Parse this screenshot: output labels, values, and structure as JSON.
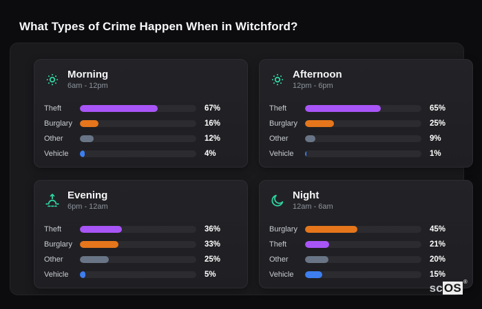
{
  "page": {
    "title": "What Types of Crime Happen When in Witchford?"
  },
  "brand": {
    "prefix": "sc",
    "suffix": "OS",
    "registered": "®"
  },
  "colors": {
    "theft": "#a855f7",
    "burglary": "#e5761b",
    "other": "#697586",
    "vehicle": "#3d7ef0",
    "icon_accent": "#2fd3a0",
    "track": "#2b2b30",
    "card_bg": "#212125",
    "board_bg": "#1a1a1d",
    "page_bg": "#0c0c0e"
  },
  "panels": [
    {
      "title": "Morning",
      "subtitle": "6am - 12pm",
      "icon": "sun",
      "rows": [
        {
          "label": "Theft",
          "value": 67,
          "pct_label": "67%",
          "color_key": "theft"
        },
        {
          "label": "Burglary",
          "value": 16,
          "pct_label": "16%",
          "color_key": "burglary"
        },
        {
          "label": "Other",
          "value": 12,
          "pct_label": "12%",
          "color_key": "other"
        },
        {
          "label": "Vehicle",
          "value": 4,
          "pct_label": "4%",
          "color_key": "vehicle"
        }
      ]
    },
    {
      "title": "Afternoon",
      "subtitle": "12pm - 6pm",
      "icon": "sun",
      "rows": [
        {
          "label": "Theft",
          "value": 65,
          "pct_label": "65%",
          "color_key": "theft"
        },
        {
          "label": "Burglary",
          "value": 25,
          "pct_label": "25%",
          "color_key": "burglary"
        },
        {
          "label": "Other",
          "value": 9,
          "pct_label": "9%",
          "color_key": "other"
        },
        {
          "label": "Vehicle",
          "value": 1,
          "pct_label": "1%",
          "color_key": "vehicle"
        }
      ]
    },
    {
      "title": "Evening",
      "subtitle": "6pm - 12am",
      "icon": "sunset",
      "rows": [
        {
          "label": "Theft",
          "value": 36,
          "pct_label": "36%",
          "color_key": "theft"
        },
        {
          "label": "Burglary",
          "value": 33,
          "pct_label": "33%",
          "color_key": "burglary"
        },
        {
          "label": "Other",
          "value": 25,
          "pct_label": "25%",
          "color_key": "other"
        },
        {
          "label": "Vehicle",
          "value": 5,
          "pct_label": "5%",
          "color_key": "vehicle"
        }
      ]
    },
    {
      "title": "Night",
      "subtitle": "12am - 6am",
      "icon": "moon",
      "rows": [
        {
          "label": "Burglary",
          "value": 45,
          "pct_label": "45%",
          "color_key": "burglary"
        },
        {
          "label": "Theft",
          "value": 21,
          "pct_label": "21%",
          "color_key": "theft"
        },
        {
          "label": "Other",
          "value": 20,
          "pct_label": "20%",
          "color_key": "other"
        },
        {
          "label": "Vehicle",
          "value": 15,
          "pct_label": "15%",
          "color_key": "vehicle"
        }
      ]
    }
  ],
  "chart_data": [
    {
      "type": "bar",
      "orientation": "horizontal",
      "title": "Morning",
      "subtitle": "6am - 12pm",
      "categories": [
        "Theft",
        "Burglary",
        "Other",
        "Vehicle"
      ],
      "values": [
        67,
        16,
        12,
        4
      ],
      "unit": "%",
      "xlim": [
        0,
        100
      ],
      "grid": false,
      "legend": false
    },
    {
      "type": "bar",
      "orientation": "horizontal",
      "title": "Afternoon",
      "subtitle": "12pm - 6pm",
      "categories": [
        "Theft",
        "Burglary",
        "Other",
        "Vehicle"
      ],
      "values": [
        65,
        25,
        9,
        1
      ],
      "unit": "%",
      "xlim": [
        0,
        100
      ],
      "grid": false,
      "legend": false
    },
    {
      "type": "bar",
      "orientation": "horizontal",
      "title": "Evening",
      "subtitle": "6pm - 12am",
      "categories": [
        "Theft",
        "Burglary",
        "Other",
        "Vehicle"
      ],
      "values": [
        36,
        33,
        25,
        5
      ],
      "unit": "%",
      "xlim": [
        0,
        100
      ],
      "grid": false,
      "legend": false
    },
    {
      "type": "bar",
      "orientation": "horizontal",
      "title": "Night",
      "subtitle": "12am - 6am",
      "categories": [
        "Burglary",
        "Theft",
        "Other",
        "Vehicle"
      ],
      "values": [
        45,
        21,
        20,
        15
      ],
      "unit": "%",
      "xlim": [
        0,
        100
      ],
      "grid": false,
      "legend": false
    }
  ]
}
